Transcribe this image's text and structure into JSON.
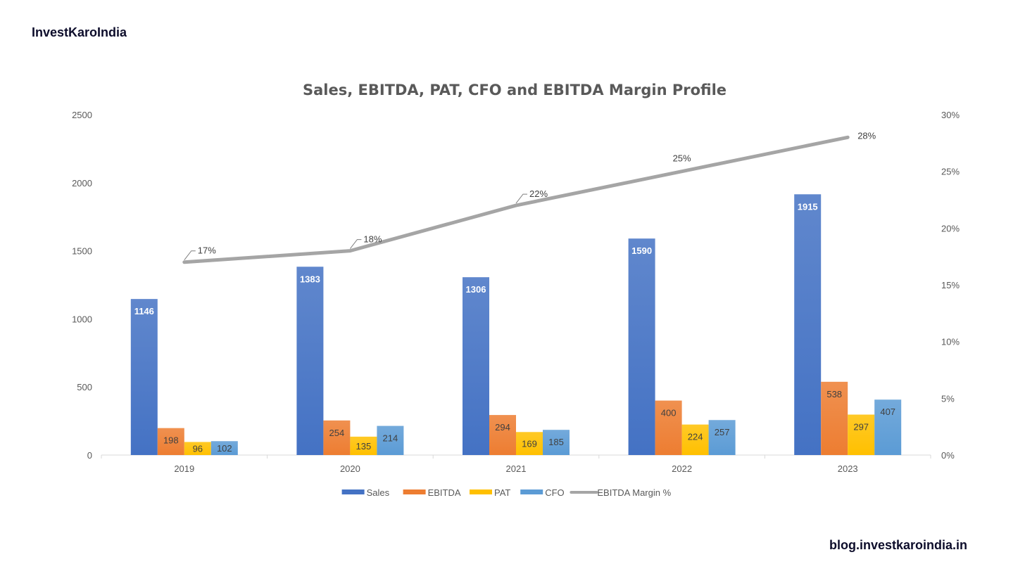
{
  "brand": "InvestKaroIndia",
  "footer_url": "blog.investkaroindia.in",
  "chart_data": {
    "type": "bar",
    "title": "Sales, EBITDA, PAT, CFO and EBITDA Margin Profile",
    "categories": [
      "2019",
      "2020",
      "2021",
      "2022",
      "2023"
    ],
    "series": [
      {
        "name": "Sales",
        "values": [
          1146,
          1383,
          1306,
          1590,
          1915
        ],
        "color": "#4472C4"
      },
      {
        "name": "EBITDA",
        "values": [
          198,
          254,
          294,
          400,
          538
        ],
        "color": "#ED7D31"
      },
      {
        "name": "PAT",
        "values": [
          96,
          135,
          169,
          224,
          297
        ],
        "color": "#FFC000"
      },
      {
        "name": "CFO",
        "values": [
          102,
          214,
          185,
          257,
          407
        ],
        "color": "#5B9BD5"
      }
    ],
    "line_series": {
      "name": "EBITDA Margin %",
      "values": [
        17,
        18,
        22,
        25,
        28
      ],
      "labels": [
        "17%",
        "18%",
        "22%",
        "25%",
        "28%"
      ],
      "color": "#A5A5A5",
      "axis": "right"
    },
    "ylim": [
      0,
      2500
    ],
    "yticks": [
      "0",
      "500",
      "1000",
      "1500",
      "2000",
      "2500"
    ],
    "y2lim": [
      0,
      30
    ],
    "y2ticks": [
      "0%",
      "5%",
      "10%",
      "15%",
      "20%",
      "25%",
      "30%"
    ],
    "grid": false,
    "legend_position": "bottom"
  }
}
